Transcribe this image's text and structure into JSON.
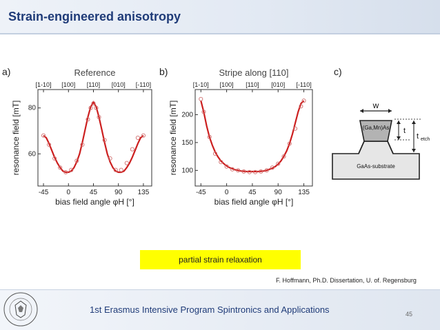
{
  "slide": {
    "title": "Strain-engineered anisotropy",
    "caption": "partial strain relaxation",
    "citation": "F. Hoffmann, Ph.D. Dissertation, U. of. Regensburg",
    "footer": "1st Erasmus Intensive Program Spintronics and Applications",
    "page_number": "45"
  },
  "seal": {
    "text": "UNIVERSITAS VARSOVIENSIS"
  },
  "chart_data": [
    {
      "type": "line",
      "panel_label": "a)",
      "title": "Reference",
      "xlabel": "bias field angle φH [°]",
      "ylabel": "resonance field [mT]",
      "x_ticks": [
        -45,
        0,
        45,
        90,
        135
      ],
      "y_ticks": [
        60,
        80
      ],
      "top_labels": [
        "[1-10]",
        "[100]",
        "[110]",
        "[010]",
        "[-110]"
      ],
      "top_label_positions": [
        -45,
        0,
        45,
        90,
        135
      ],
      "xlim": [
        -55,
        150
      ],
      "ylim": [
        46,
        88
      ],
      "series": [
        {
          "style": "points",
          "x": [
            -45,
            -35,
            -25,
            -15,
            -5,
            5,
            15,
            25,
            35,
            40,
            45,
            50,
            55,
            65,
            75,
            85,
            95,
            105,
            115,
            125,
            135
          ],
          "y": [
            68,
            64,
            58,
            54,
            52,
            53,
            57,
            64,
            75,
            80,
            82,
            80,
            76,
            66,
            58,
            53,
            53,
            56,
            62,
            67,
            68
          ]
        },
        {
          "style": "fit",
          "x": [
            -45,
            -40,
            -35,
            -30,
            -25,
            -20,
            -15,
            -10,
            -5,
            0,
            5,
            10,
            15,
            20,
            25,
            30,
            35,
            40,
            45,
            50,
            55,
            60,
            65,
            70,
            75,
            80,
            85,
            90,
            95,
            100,
            105,
            110,
            115,
            120,
            125,
            130,
            135
          ],
          "y": [
            68,
            67,
            64.5,
            61.5,
            58.5,
            56,
            54,
            52.5,
            52,
            52,
            52.5,
            54,
            56.5,
            60,
            65,
            70.5,
            76,
            80.5,
            82.5,
            80.5,
            76,
            70.5,
            65,
            60,
            56.5,
            54,
            52.5,
            52,
            52,
            52.5,
            54,
            56,
            58.5,
            61.5,
            64.5,
            67,
            68
          ]
        }
      ]
    },
    {
      "type": "line",
      "panel_label": "b)",
      "title": "Stripe along [110]",
      "xlabel": "bias field angle φH [°]",
      "ylabel": "resonance field [mT]",
      "x_ticks": [
        -45,
        0,
        45,
        90,
        135
      ],
      "y_ticks": [
        100,
        150,
        200
      ],
      "top_labels": [
        "[1-10]",
        "[100]",
        "[110]",
        "[010]",
        "[-110]"
      ],
      "top_label_positions": [
        -45,
        0,
        45,
        90,
        135
      ],
      "xlim": [
        -55,
        150
      ],
      "ylim": [
        72,
        245
      ],
      "series": [
        {
          "style": "points",
          "x": [
            -45,
            -40,
            -30,
            -20,
            -10,
            0,
            10,
            20,
            30,
            40,
            50,
            60,
            70,
            80,
            90,
            100,
            110,
            120,
            130,
            135
          ],
          "y": [
            228,
            205,
            160,
            130,
            115,
            107,
            102,
            100,
            98,
            97,
            97,
            98,
            100,
            105,
            112,
            125,
            148,
            175,
            215,
            225
          ]
        },
        {
          "style": "fit",
          "x": [
            -45,
            -40,
            -35,
            -30,
            -25,
            -20,
            -15,
            -10,
            -5,
            0,
            5,
            10,
            15,
            20,
            25,
            30,
            35,
            40,
            45,
            50,
            55,
            60,
            65,
            70,
            75,
            80,
            85,
            90,
            95,
            100,
            105,
            110,
            115,
            120,
            125,
            130,
            135
          ],
          "y": [
            225,
            205,
            180,
            160,
            145,
            133,
            124,
            117,
            112,
            108,
            105,
            103,
            101,
            100,
            99,
            98.5,
            98,
            98,
            98,
            98,
            98,
            98.5,
            99,
            100,
            102,
            104,
            107,
            111,
            117,
            125,
            135,
            148,
            165,
            185,
            205,
            220,
            225
          ]
        }
      ]
    },
    {
      "type": "diagram",
      "panel_label": "c)",
      "labels": {
        "w": "w",
        "t": "t",
        "t_etch": "t",
        "t_etch_sub": "etch",
        "layer": "(Ga,Mn)As",
        "substrate": "GaAs-substrate"
      }
    }
  ]
}
